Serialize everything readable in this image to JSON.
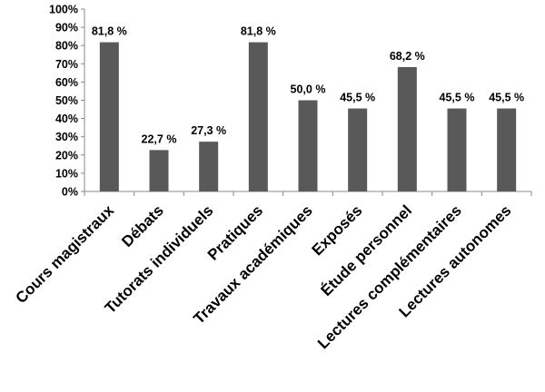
{
  "chart_data": {
    "type": "bar",
    "categories": [
      "Cours magistraux",
      "Débats",
      "Tutorats individuels",
      "Pratiques",
      "Travaux académiques",
      "Exposés",
      "Étude personnel",
      "Lectures complémentaires",
      "Lectures autonomes"
    ],
    "values": [
      81.8,
      22.7,
      27.3,
      81.8,
      50.0,
      45.5,
      68.2,
      45.5,
      45.5
    ],
    "data_labels": [
      "81,8 %",
      "22,7 %",
      "27,3 %",
      "81,8 %",
      "50,0 %",
      "45,5 %",
      "68,2 %",
      "45,5 %",
      "45,5 %"
    ],
    "ylim": [
      0,
      100
    ],
    "yticks": [
      0,
      10,
      20,
      30,
      40,
      50,
      60,
      70,
      80,
      90,
      100
    ],
    "ytick_labels": [
      "0%",
      "10%",
      "20%",
      "30%",
      "40%",
      "50%",
      "60%",
      "70%",
      "80%",
      "90%",
      "100%"
    ],
    "title": "",
    "xlabel": "",
    "ylabel": "",
    "grid": false,
    "legend": "none",
    "bar_color": "#595959"
  }
}
